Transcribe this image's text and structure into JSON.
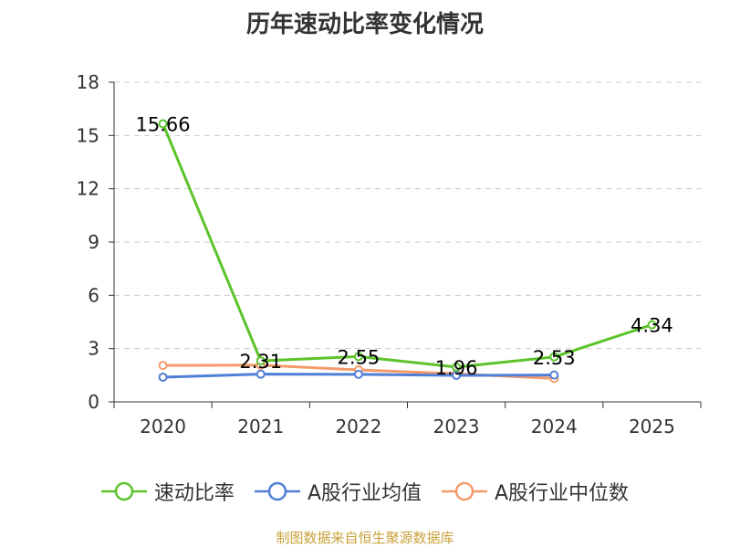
{
  "chart_data": {
    "type": "line",
    "title": "历年速动比率变化情况",
    "categories": [
      "2020",
      "2021",
      "2022",
      "2023",
      "2024",
      "2025"
    ],
    "ylim": [
      0,
      18
    ],
    "yticks": [
      0,
      3,
      6,
      9,
      12,
      15,
      18
    ],
    "grid": true,
    "legend_position": "bottom",
    "series": [
      {
        "name": "速动比率",
        "color": "#5cc32a",
        "values": [
          15.66,
          2.31,
          2.55,
          1.96,
          2.53,
          4.34
        ],
        "labels": [
          "15.66",
          "2.31",
          "2.55",
          "1.96",
          "2.53",
          "4.34"
        ]
      },
      {
        "name": "A股行业均值",
        "color": "#4f7fd6",
        "values": [
          1.39,
          1.56,
          1.55,
          1.49,
          1.51,
          null
        ]
      },
      {
        "name": "A股行业中位数",
        "color": "#f39b6b",
        "values": [
          2.05,
          2.07,
          1.8,
          1.58,
          1.32,
          null
        ]
      }
    ]
  },
  "source_note": "制图数据来自恒生聚源数据库"
}
